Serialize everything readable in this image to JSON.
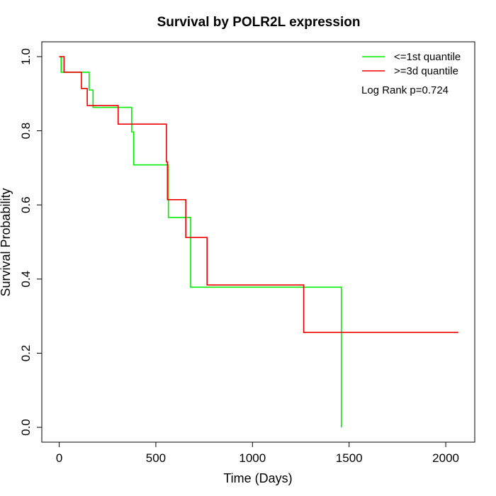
{
  "chart_data": {
    "type": "line",
    "title": "Survival by POLR2L expression",
    "xlabel": "Time (Days)",
    "ylabel": "Survival Probability",
    "xlim": [
      -90,
      2150
    ],
    "ylim": [
      -0.04,
      1.04
    ],
    "x_ticks": [
      0,
      500,
      1000,
      1500,
      2000
    ],
    "x_tick_labels": [
      "0",
      "500",
      "1000",
      "1500",
      "2000"
    ],
    "y_ticks": [
      0.0,
      0.2,
      0.4,
      0.6,
      0.8,
      1.0
    ],
    "y_tick_labels": [
      "0.0",
      "0.2",
      "0.4",
      "0.6",
      "0.8",
      "1.0"
    ],
    "grid": false,
    "legend_position": "top-right",
    "annotation": "Log Rank p=0.724",
    "series": [
      {
        "name": "<=1st quantile",
        "color": "#00ee00",
        "steps": [
          [
            0,
            1.0
          ],
          [
            10,
            0.958
          ],
          [
            155,
            0.91
          ],
          [
            175,
            0.863
          ],
          [
            375,
            0.797
          ],
          [
            385,
            0.708
          ],
          [
            565,
            0.566
          ],
          [
            680,
            0.378
          ],
          [
            1460,
            0.0
          ]
        ]
      },
      {
        "name": ">=3d quantile",
        "color": "#ee0000",
        "steps": [
          [
            0,
            1.0
          ],
          [
            25,
            0.958
          ],
          [
            115,
            0.914
          ],
          [
            145,
            0.868
          ],
          [
            305,
            0.818
          ],
          [
            555,
            0.716
          ],
          [
            560,
            0.614
          ],
          [
            655,
            0.512
          ],
          [
            765,
            0.384
          ],
          [
            1265,
            0.256
          ],
          [
            2065,
            0.256
          ]
        ]
      }
    ]
  }
}
